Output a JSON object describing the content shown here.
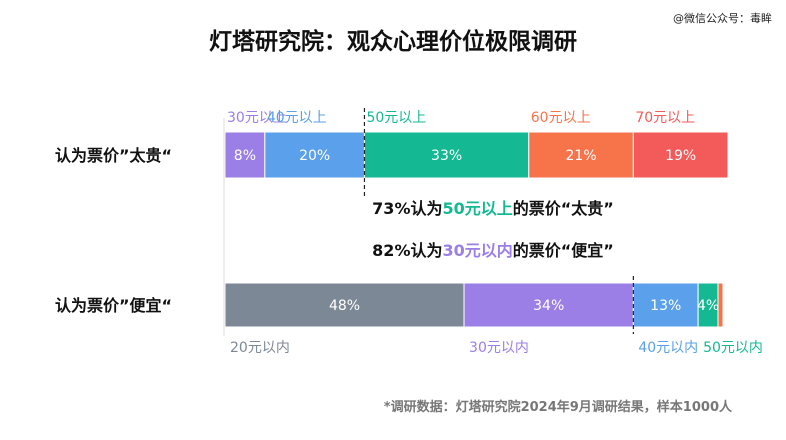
{
  "title": "灯塔研究院：观众心理价位极限调研",
  "watermark": "@微信公众号：毒眸",
  "footnote": "*调研数据：灯塔研究院2024年9月调研结果，样本1000人",
  "chart_data": {
    "type": "bar",
    "orientation": "horizontal",
    "stacked": true,
    "xlim": [
      0,
      100
    ],
    "rows": [
      {
        "label": "认为票价”太贵“",
        "segments": [
          {
            "category": "30元以上",
            "value": 8,
            "label": "8%",
            "color": "#9b7ee6"
          },
          {
            "category": "40元以上",
            "value": 20,
            "label": "20%",
            "color": "#5aa0ea"
          },
          {
            "category": "50元以上",
            "value": 33,
            "label": "33%",
            "color": "#14b994"
          },
          {
            "category": "60元以上",
            "value": 21,
            "label": "21%",
            "color": "#f7744b"
          },
          {
            "category": "70元以上",
            "value": 19,
            "label": "19%",
            "color": "#f35a5a"
          }
        ]
      },
      {
        "label": "认为票价”便宜“",
        "segments": [
          {
            "category": "20元以内",
            "value": 48,
            "label": "48%",
            "color": "#7d8896"
          },
          {
            "category": "30元以内",
            "value": 34,
            "label": "34%",
            "color": "#9b7ee6"
          },
          {
            "category": "40元以内",
            "value": 13,
            "label": "13%",
            "color": "#5aa0ea"
          },
          {
            "category": "50元以内",
            "value": 4,
            "label": "4%",
            "color": "#14b994"
          },
          {
            "category": "",
            "value": 1,
            "label": "",
            "color": "#f7744b"
          }
        ]
      }
    ],
    "annotations": [
      {
        "pre": "73%认为",
        "highlight": "50元以上",
        "post": "的票价“太贵”",
        "color": "#14b994",
        "divider_after_value": 28
      },
      {
        "pre": "82%认为",
        "highlight": "30元以内",
        "post": "的票价“便宜”",
        "color": "#9b7ee6",
        "divider_after_value": 82
      }
    ]
  }
}
